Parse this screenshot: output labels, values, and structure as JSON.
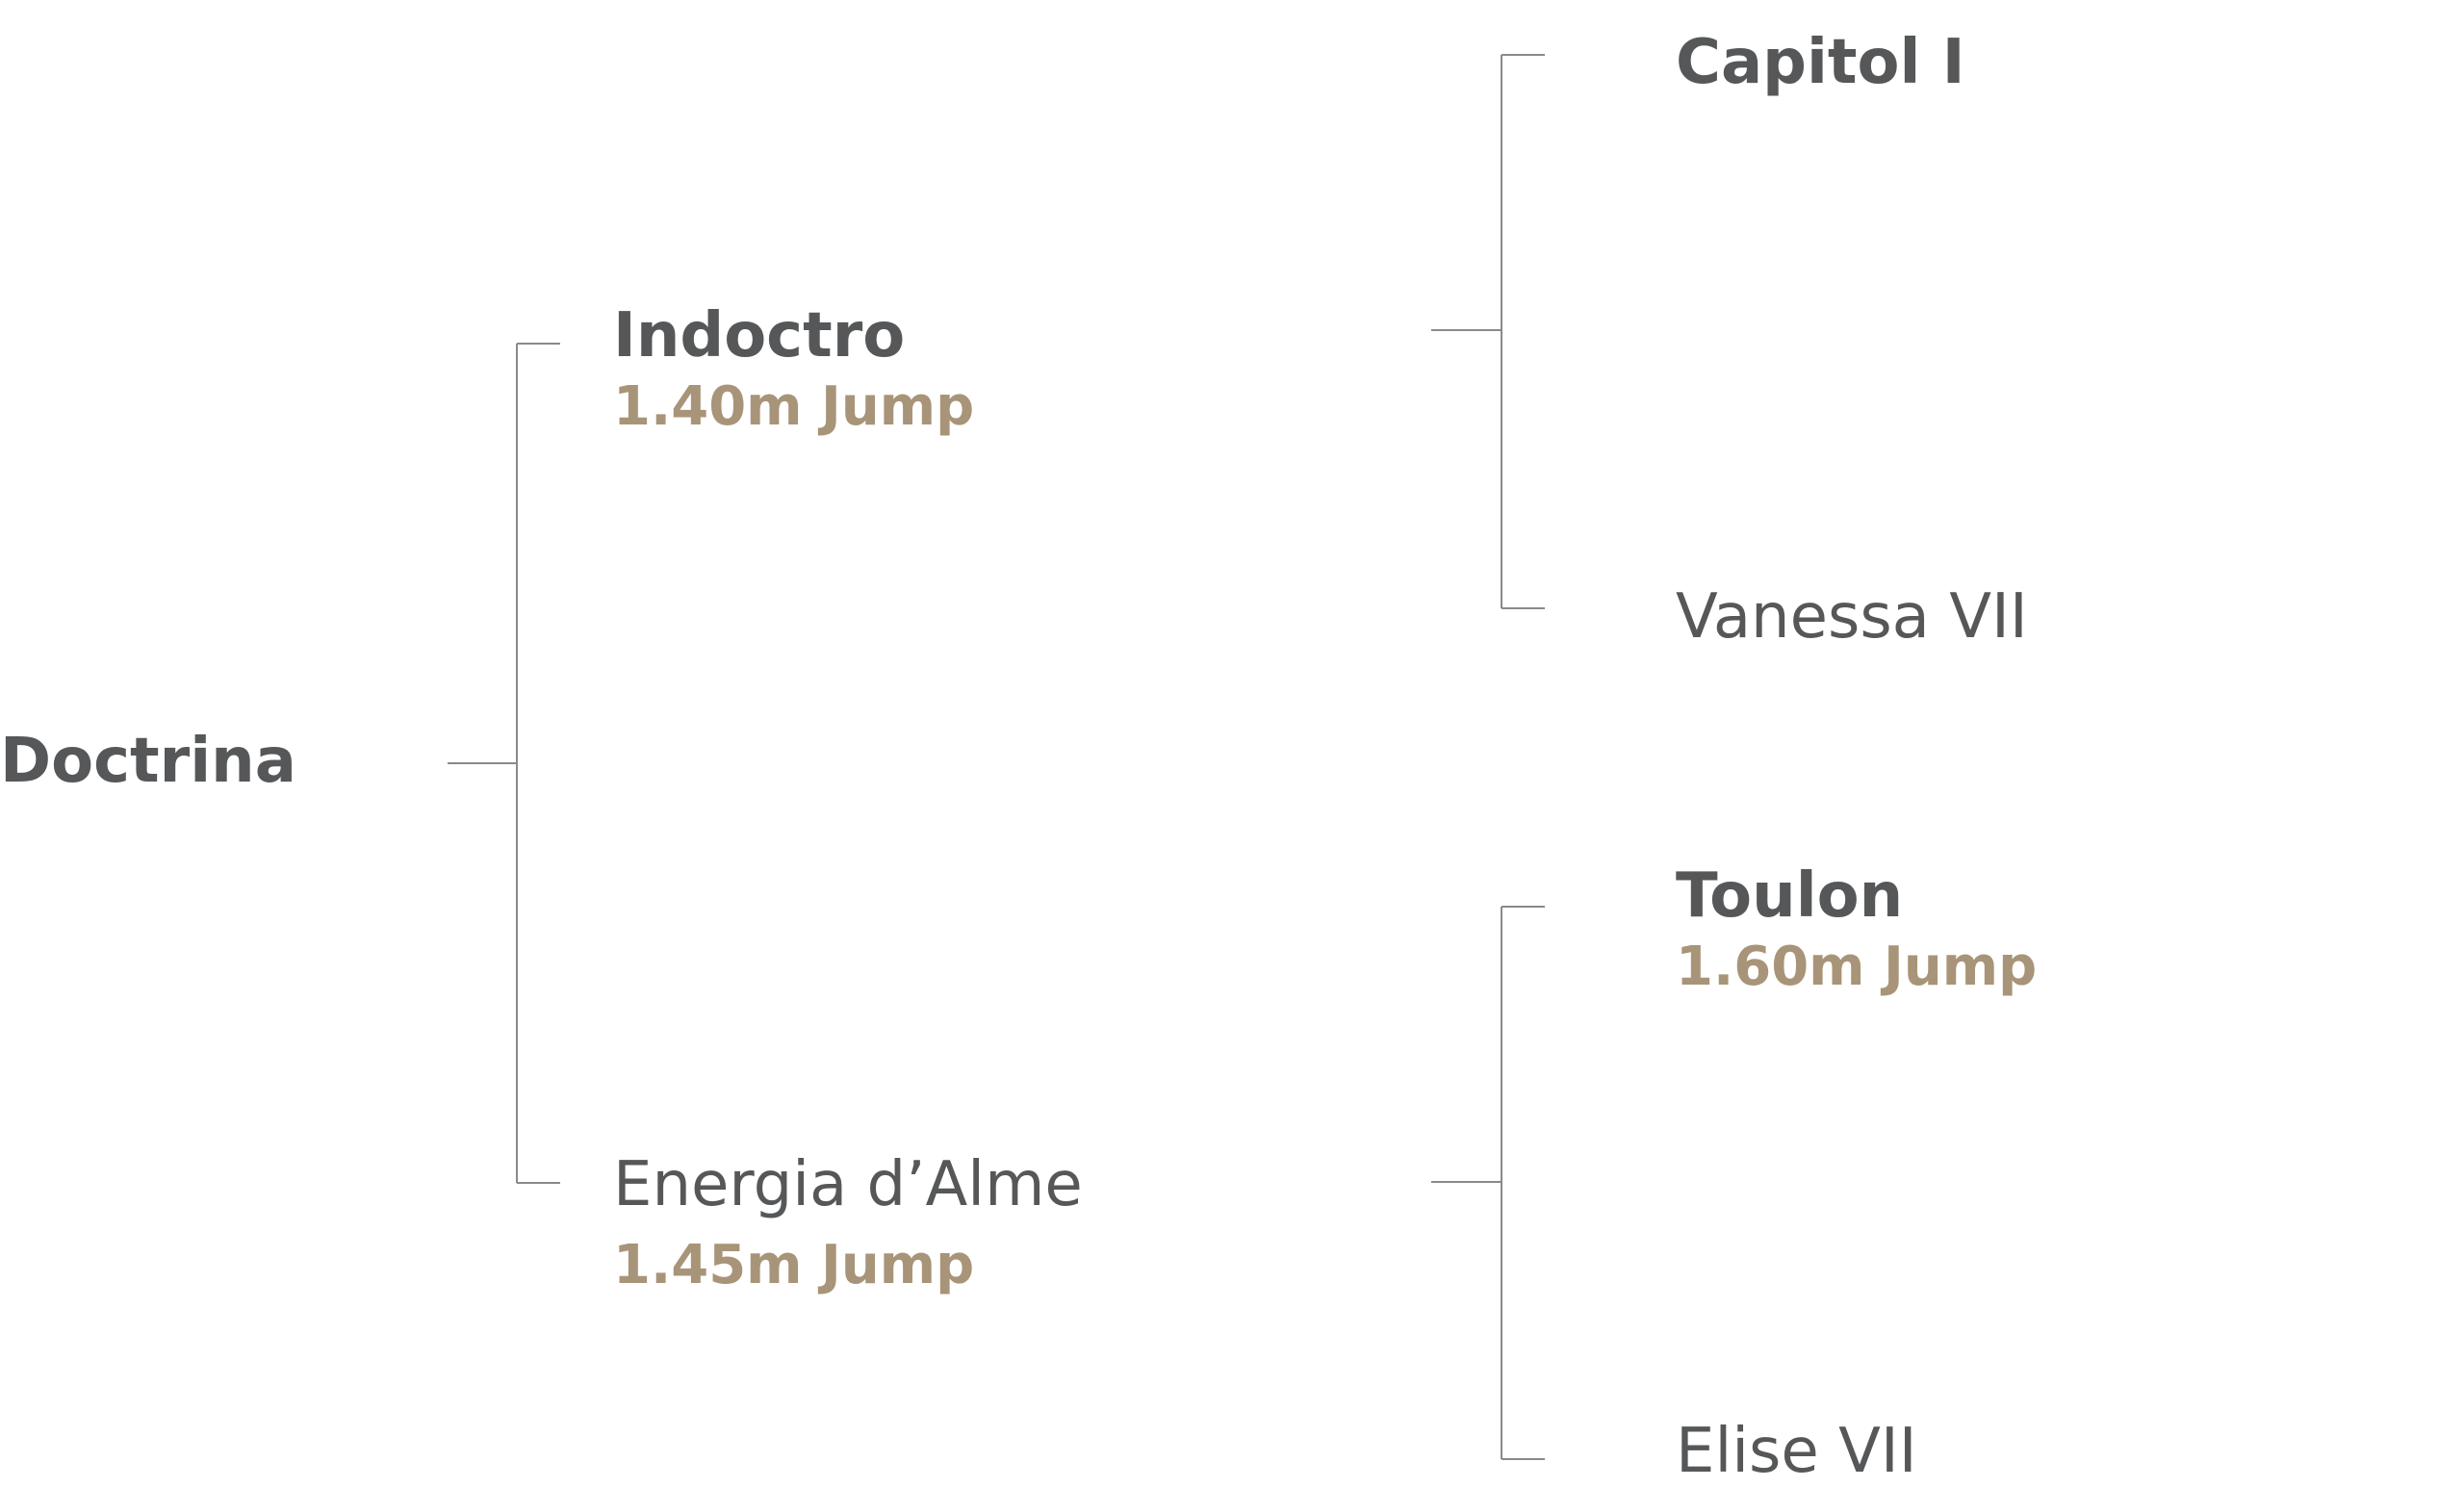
{
  "pedigree": {
    "subject": {
      "name": "Doctrina"
    },
    "sire": {
      "name": "Indoctro",
      "note": "1.40m Jump"
    },
    "dam": {
      "name": "Energia d’Alme",
      "note": "1.45m Jump"
    },
    "sire_sire": {
      "name": "Capitol I"
    },
    "sire_dam": {
      "name": "Vanessa VII"
    },
    "dam_sire": {
      "name": "Toulon",
      "note": "1.60m Jump"
    },
    "dam_dam": {
      "name": "Elise VII"
    }
  },
  "colors": {
    "name_text": "#555759",
    "note_text": "#a89478",
    "connector_line": "#8a8a8a",
    "background": "#ffffff"
  }
}
